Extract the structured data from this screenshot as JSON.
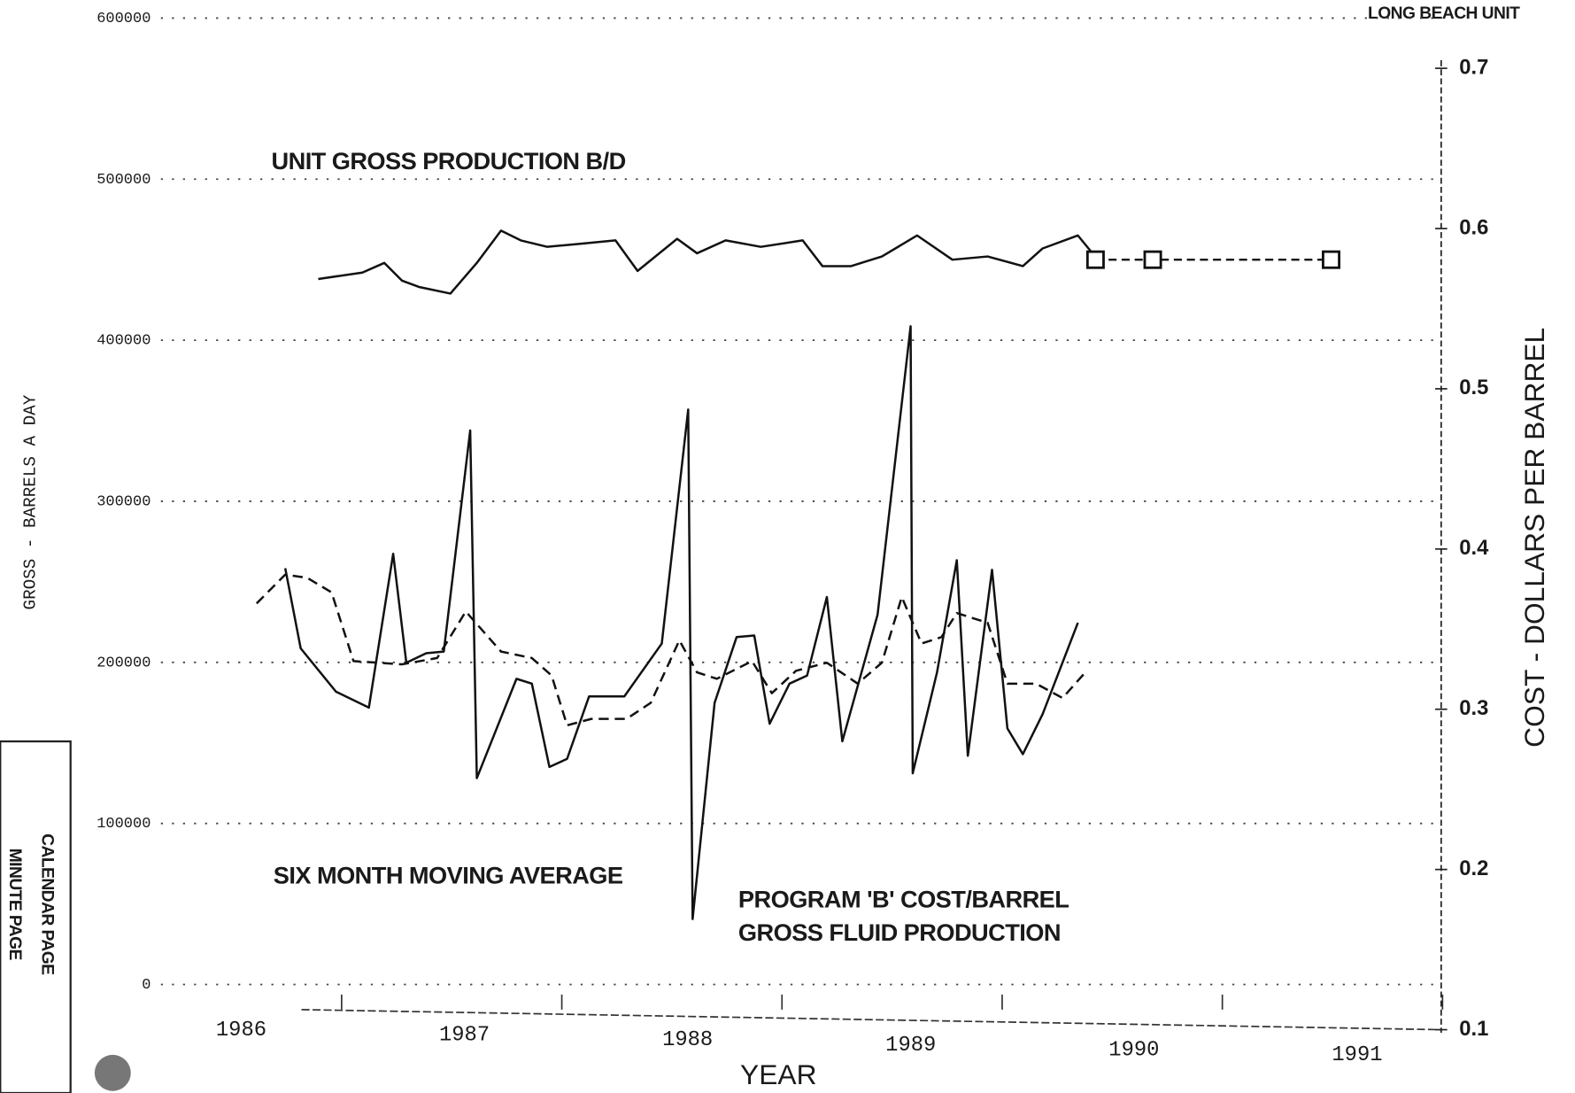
{
  "chart_data": {
    "type": "line",
    "header": "LONG BEACH UNIT",
    "xlabel": "YEAR",
    "ylabel": "GROSS - BARRELS A DAY",
    "y2label": "COST - DOLLARS PER BARREL",
    "xlim": [
      1985.95,
      1991.45
    ],
    "xticks": [
      1986,
      1987,
      1988,
      1989,
      1990,
      1991
    ],
    "ylim": [
      0,
      600000
    ],
    "yticks": [
      0,
      100000,
      200000,
      300000,
      400000,
      500000,
      600000
    ],
    "y2lim": [
      0.1,
      0.7
    ],
    "y2ticks": [
      0.1,
      0.2,
      0.3,
      0.4,
      0.5,
      0.6,
      0.7
    ],
    "grid": true,
    "series": [
      {
        "name": "UNIT GROSS PRODUCTION B/D",
        "color": "#111111",
        "dashed": false,
        "x": [
          1986.35,
          1986.55,
          1986.65,
          1986.73,
          1986.81,
          1986.95,
          1987.07,
          1987.18,
          1987.27,
          1987.39,
          1987.55,
          1987.7,
          1987.8,
          1987.98,
          1988.07,
          1988.2,
          1988.36,
          1988.55,
          1988.64,
          1988.77,
          1988.91,
          1989.07,
          1989.23,
          1989.39,
          1989.55,
          1989.64,
          1989.8,
          1989.86
        ],
        "values": [
          438000,
          442000,
          448000,
          437000,
          433000,
          429000,
          448000,
          468000,
          462000,
          458000,
          460000,
          462000,
          443000,
          463000,
          454000,
          462000,
          458000,
          462000,
          446000,
          446000,
          452000,
          465000,
          450000,
          452000,
          446000,
          457000,
          465000,
          455000
        ]
      },
      {
        "name": "PROGRAM 'B' COST/BARREL",
        "color": "#111111",
        "dashed": false,
        "axis": "y2",
        "x": [
          1986.2,
          1986.27,
          1986.43,
          1986.58,
          1986.69,
          1986.75,
          1986.84,
          1986.92,
          1987.04,
          1987.07,
          1987.25,
          1987.32,
          1987.4,
          1987.48,
          1987.58,
          1987.74,
          1987.91,
          1988.03,
          1988.05,
          1988.15,
          1988.25,
          1988.33,
          1988.4,
          1988.49,
          1988.57,
          1988.66,
          1988.73,
          1988.89,
          1989.04,
          1989.05,
          1989.16,
          1989.25,
          1989.3,
          1989.41,
          1989.48,
          1989.55,
          1989.64,
          1989.8
        ],
        "values": [
          0.388,
          0.338,
          0.311,
          0.301,
          0.397,
          0.329,
          0.335,
          0.336,
          0.474,
          0.257,
          0.319,
          0.316,
          0.264,
          0.269,
          0.308,
          0.308,
          0.341,
          0.487,
          0.169,
          0.304,
          0.345,
          0.346,
          0.291,
          0.316,
          0.321,
          0.37,
          0.28,
          0.359,
          0.539,
          0.26,
          0.323,
          0.393,
          0.271,
          0.387,
          0.288,
          0.272,
          0.297,
          0.354
        ]
      },
      {
        "name": "SIX MONTH MOVING AVERAGE",
        "color": "#111111",
        "dashed": true,
        "axis": "y2",
        "x": [
          1986.07,
          1986.2,
          1986.3,
          1986.41,
          1986.51,
          1986.73,
          1986.89,
          1987.02,
          1987.18,
          1987.32,
          1987.41,
          1987.48,
          1987.59,
          1987.75,
          1987.86,
          1987.99,
          1988.07,
          1988.16,
          1988.32,
          1988.41,
          1988.52,
          1988.66,
          1988.8,
          1988.91,
          1989.0,
          1989.09,
          1989.18,
          1989.25,
          1989.39,
          1989.48,
          1989.61,
          1989.73,
          1989.84
        ],
        "values": [
          0.366,
          0.384,
          0.382,
          0.373,
          0.33,
          0.328,
          0.332,
          0.361,
          0.336,
          0.332,
          0.321,
          0.29,
          0.294,
          0.294,
          0.304,
          0.343,
          0.323,
          0.319,
          0.33,
          0.31,
          0.324,
          0.329,
          0.316,
          0.329,
          0.37,
          0.341,
          0.345,
          0.36,
          0.354,
          0.316,
          0.316,
          0.307,
          0.324
        ]
      }
    ],
    "projection": {
      "x": [
        1989.88,
        1990.14,
        1990.95
      ],
      "values": [
        450000,
        450000,
        450000
      ]
    },
    "annotations": [
      "GROSS FLUID PRODUCTION",
      "CALENDAR PAGE",
      "MINUTE PAGE"
    ]
  }
}
